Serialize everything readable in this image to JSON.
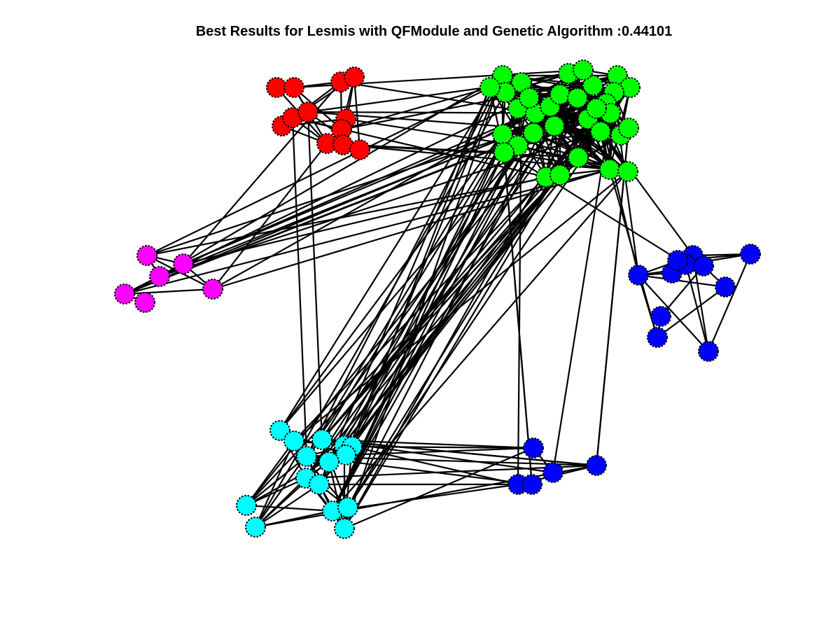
{
  "title": "Best Results for Lesmis with QFModule and Genetic Algorithm :0.44101",
  "colors": {
    "background": "#ffffff",
    "edge": "#000000",
    "node_outline": "#000000",
    "red": "#ff0000",
    "green": "#00ff00",
    "magenta": "#ff00ff",
    "blue": "#0000ff",
    "cyan": "#00ffff"
  },
  "communities": [
    {
      "name": "red",
      "color": "#ff0000",
      "size": 12
    },
    {
      "name": "green",
      "color": "#00ff00",
      "size": 33
    },
    {
      "name": "magenta",
      "color": "#ff00ff",
      "size": 6
    },
    {
      "name": "blue-right",
      "color": "#0000ff",
      "size": 11
    },
    {
      "name": "cyan",
      "color": "#00ffff",
      "size": 15
    },
    {
      "name": "blue-bottom",
      "color": "#0000ff",
      "size": 5
    }
  ]
}
